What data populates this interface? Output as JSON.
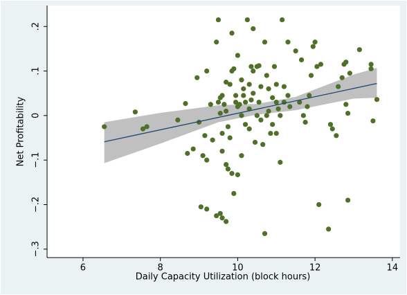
{
  "chart_data": {
    "type": "scatter",
    "x_label": "Daily Capacity Utilization (block hours)",
    "y_label": "Net Profitability",
    "xlim": [
      5.07,
      14.2
    ],
    "ylim": [
      -0.319,
      0.247
    ],
    "xticks": [
      6,
      8,
      10,
      12,
      14
    ],
    "yticks": [
      {
        "value": -0.3,
        "label": "−.3"
      },
      {
        "value": -0.2,
        "label": "−.2"
      },
      {
        "value": -0.1,
        "label": "−.1"
      },
      0,
      {
        "value": 0.1,
        "label": ".1"
      },
      {
        "value": 0.2,
        "label": ".2"
      }
    ],
    "points": {
      "color": "#4f7028",
      "x": [
        6.55,
        7.35,
        7.55,
        7.65,
        8.45,
        8.65,
        8.7,
        8.85,
        8.95,
        9.0,
        9.05,
        9.1,
        9.15,
        9.2,
        9.2,
        9.2,
        9.3,
        9.35,
        9.45,
        9.5,
        9.45,
        9.55,
        9.6,
        9.7,
        9.5,
        9.55,
        9.6,
        9.55,
        9.6,
        9.65,
        9.7,
        9.7,
        9.75,
        9.7,
        9.75,
        9.8,
        9.85,
        9.85,
        9.9,
        9.9,
        9.85,
        9.95,
        10.0,
        10.0,
        10.05,
        10.1,
        10.1,
        10.15,
        10.2,
        10.25,
        10.3,
        10.3,
        10.35,
        10.4,
        10.4,
        10.45,
        10.5,
        10.55,
        10.55,
        10.6,
        10.65,
        10.7,
        10.7,
        10.75,
        10.8,
        10.85,
        10.9,
        10.95,
        11.0,
        11.0,
        11.05,
        11.1,
        11.15,
        11.2,
        11.3,
        11.35,
        11.5,
        11.6,
        11.65,
        11.7,
        11.75,
        11.8,
        11.85,
        11.9,
        11.95,
        12.0,
        12.05,
        12.1,
        12.15,
        12.35,
        12.4,
        12.45,
        12.55,
        12.6,
        12.7,
        12.75,
        12.8,
        12.8,
        12.85,
        12.85,
        12.9,
        13.15,
        13.45,
        13.45,
        13.5,
        13.6,
        10.0,
        10.2,
        10.4,
        10.6,
        10.8,
        9.8,
        10.9,
        11.0,
        10.3,
        9.95,
        10.5,
        11.2,
        11.3,
        10.75,
        9.6,
        10.1,
        11.1,
        10.15,
        10.35
      ],
      "y": [
        -0.025,
        0.008,
        -0.03,
        -0.025,
        -0.01,
        0.027,
        -0.085,
        -0.075,
        0.085,
        -0.015,
        -0.205,
        -0.09,
        -0.045,
        0.1,
        -0.21,
        -0.1,
        0.025,
        -0.055,
        0.165,
        0.215,
        -0.225,
        -0.22,
        -0.23,
        -0.238,
        0.03,
        0.005,
        -0.08,
        0.04,
        0.045,
        0.025,
        0.01,
        -0.11,
        -0.12,
        0.075,
        -0.025,
        0.07,
        0.1,
        0.185,
        0.105,
        -0.175,
        -0.13,
        0.045,
        0.135,
        -0.133,
        0.025,
        -0.09,
        0.0,
        0.06,
        0.03,
        0.215,
        0.015,
        -0.03,
        0.11,
        0.195,
        0.1,
        -0.06,
        0.11,
        0.112,
        0.03,
        0.065,
        -0.065,
        0.165,
        -0.265,
        0.09,
        0.06,
        -0.04,
        0.04,
        0.11,
        0.07,
        -0.04,
        0.015,
        -0.105,
        0.215,
        0.065,
        0.165,
        0.02,
        0.145,
        0.03,
        0.125,
        0.0,
        -0.015,
        0.02,
        0.045,
        0.09,
        0.155,
        0.165,
        0.11,
        -0.2,
        0.115,
        -0.255,
        -0.02,
        -0.03,
        -0.045,
        0.065,
        0.085,
        0.115,
        0.12,
        0.025,
        -0.19,
        0.005,
        0.095,
        0.148,
        0.115,
        0.105,
        -0.012,
        0.036,
        0.02,
        -0.02,
        0.05,
        -0.01,
        0.01,
        -0.05,
        -0.02,
        0.03,
        0.07,
        0.03,
        0.0,
        0.03,
        0.045,
        0.0,
        -0.04,
        0.08,
        0.0,
        0.045,
        0.035
      ]
    },
    "fit": {
      "color": "#1a476f",
      "x": [
        6.55,
        13.6
      ],
      "y": [
        -0.059,
        0.072
      ]
    },
    "ci": {
      "color": "#c0c0c0",
      "x": [
        6.55,
        8,
        9.5,
        10.5,
        11.5,
        13,
        13.6
      ],
      "lower": [
        -0.107,
        -0.063,
        -0.015,
        0.002,
        0.012,
        0.038,
        0.04
      ],
      "upper": [
        -0.015,
        0.006,
        0.023,
        0.026,
        0.042,
        0.092,
        0.107
      ]
    }
  }
}
